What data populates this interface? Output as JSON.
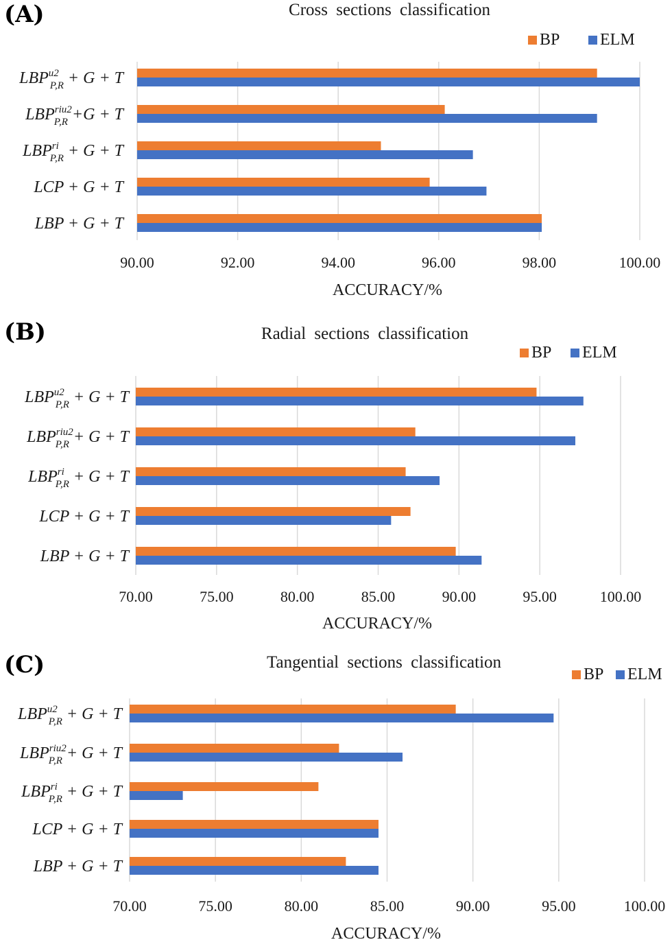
{
  "colors": {
    "BP": "#ED7D31",
    "ELM": "#4472C4"
  },
  "chart_data": [
    {
      "type": "bar",
      "orientation": "horizontal",
      "panel_label": "(A)",
      "title": "Cross  sections  classification",
      "xlabel": "ACCURACY/%",
      "xlim": [
        90,
        100
      ],
      "xticks": [
        90,
        92,
        94,
        96,
        98,
        100
      ],
      "tick_labels": [
        "90.00",
        "92.00",
        "94.00",
        "96.00",
        "98.00",
        "100.00"
      ],
      "categories": [
        {
          "base": "LBP",
          "sup": "u2",
          "sub": "P,R",
          "rest": " + G + T"
        },
        {
          "base": "LBP",
          "sup": "riu2",
          "sub": "P,R",
          "rest": " +G + T"
        },
        {
          "base": "LBP",
          "sup": "ri",
          "sub": "P,R",
          "rest": " + G + T"
        },
        {
          "base": "LCP",
          "sup": "",
          "sub": "",
          "rest": " + G + T"
        },
        {
          "base": "LBP",
          "sup": "",
          "sub": "",
          "rest": " + G + T"
        }
      ],
      "series": [
        {
          "name": "BP",
          "values": [
            99.15,
            96.12,
            94.85,
            95.82,
            98.05
          ]
        },
        {
          "name": "ELM",
          "values": [
            100.0,
            99.15,
            96.68,
            96.95,
            98.05
          ]
        }
      ],
      "grid": true,
      "legend": "top-right"
    },
    {
      "type": "bar",
      "orientation": "horizontal",
      "panel_label": "(B)",
      "title": "Radial  sections  classification",
      "xlabel": "ACCURACY/%",
      "xlim": [
        70,
        100
      ],
      "xticks": [
        70,
        75,
        80,
        85,
        90,
        95,
        100
      ],
      "tick_labels": [
        "70.00",
        "75.00",
        "80.00",
        "85.00",
        "90.00",
        "95.00",
        "100.00"
      ],
      "categories": [
        {
          "base": "LBP",
          "sup": "u2",
          "sub": "P,R",
          "rest": " + G + T"
        },
        {
          "base": "LBP",
          "sup": "riu2",
          "sub": "P,R",
          "rest": " + G + T"
        },
        {
          "base": "LBP",
          "sup": "ri",
          "sub": "P,R",
          "rest": " + G + T"
        },
        {
          "base": "LCP",
          "sup": "",
          "sub": "",
          "rest": " + G + T"
        },
        {
          "base": "LBP",
          "sup": "",
          "sub": "",
          "rest": " + G + T"
        }
      ],
      "series": [
        {
          "name": "BP",
          "values": [
            94.8,
            87.3,
            86.7,
            87.0,
            89.8
          ]
        },
        {
          "name": "ELM",
          "values": [
            97.7,
            97.2,
            88.8,
            85.8,
            91.4
          ]
        }
      ],
      "grid": true,
      "legend": "top-right"
    },
    {
      "type": "bar",
      "orientation": "horizontal",
      "panel_label": "(C)",
      "title": "Tangential  sections  classification",
      "xlabel": "ACCURACY/%",
      "xlim": [
        70,
        100
      ],
      "xticks": [
        70,
        75,
        80,
        85,
        90,
        95,
        100
      ],
      "tick_labels": [
        "70.00",
        "75.00",
        "80.00",
        "85.00",
        "90.00",
        "95.00",
        "100.00"
      ],
      "categories": [
        {
          "base": "LBP",
          "sup": "u2",
          "sub": "P,R",
          "rest": " + G + T"
        },
        {
          "base": "LBP",
          "sup": "riu2",
          "sub": "P,R",
          "rest": " + G + T"
        },
        {
          "base": "LBP",
          "sup": "ri",
          "sub": "P,R",
          "rest": " + G + T"
        },
        {
          "base": "LCP",
          "sup": "",
          "sub": "",
          "rest": " + G + T"
        },
        {
          "base": "LBP",
          "sup": "",
          "sub": "",
          "rest": " + G + T"
        }
      ],
      "series": [
        {
          "name": "BP",
          "values": [
            89.0,
            82.2,
            81.0,
            84.5,
            82.6
          ]
        },
        {
          "name": "ELM",
          "values": [
            94.7,
            85.9,
            73.1,
            84.5,
            84.5
          ]
        }
      ],
      "grid": true,
      "legend": "top-right"
    }
  ]
}
